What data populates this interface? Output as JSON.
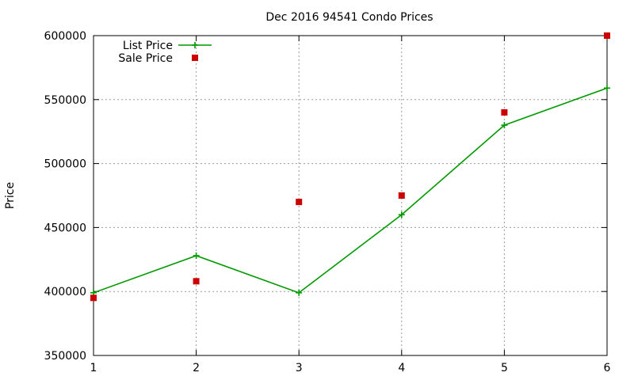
{
  "chart_data": {
    "type": "line",
    "title": "Dec 2016 94541 Condo Prices",
    "xlabel": "",
    "ylabel": "Price",
    "x": [
      1,
      2,
      3,
      4,
      5,
      6
    ],
    "xlim": [
      1,
      6
    ],
    "ylim": [
      350000,
      600000
    ],
    "xticks": [
      "1",
      "2",
      "3",
      "4",
      "5",
      "6"
    ],
    "yticks": [
      "350000",
      "400000",
      "450000",
      "500000",
      "550000",
      "600000"
    ],
    "grid": true,
    "legend_position": "top-left",
    "series": [
      {
        "name": "List Price",
        "kind": "line-with-plus-markers",
        "color": "#009900",
        "values": [
          399000,
          428000,
          399000,
          460000,
          530000,
          559000
        ]
      },
      {
        "name": "Sale Price",
        "kind": "square-points",
        "color": "#cc0000",
        "values": [
          395000,
          408000,
          470000,
          475000,
          540000,
          600000
        ]
      }
    ]
  }
}
